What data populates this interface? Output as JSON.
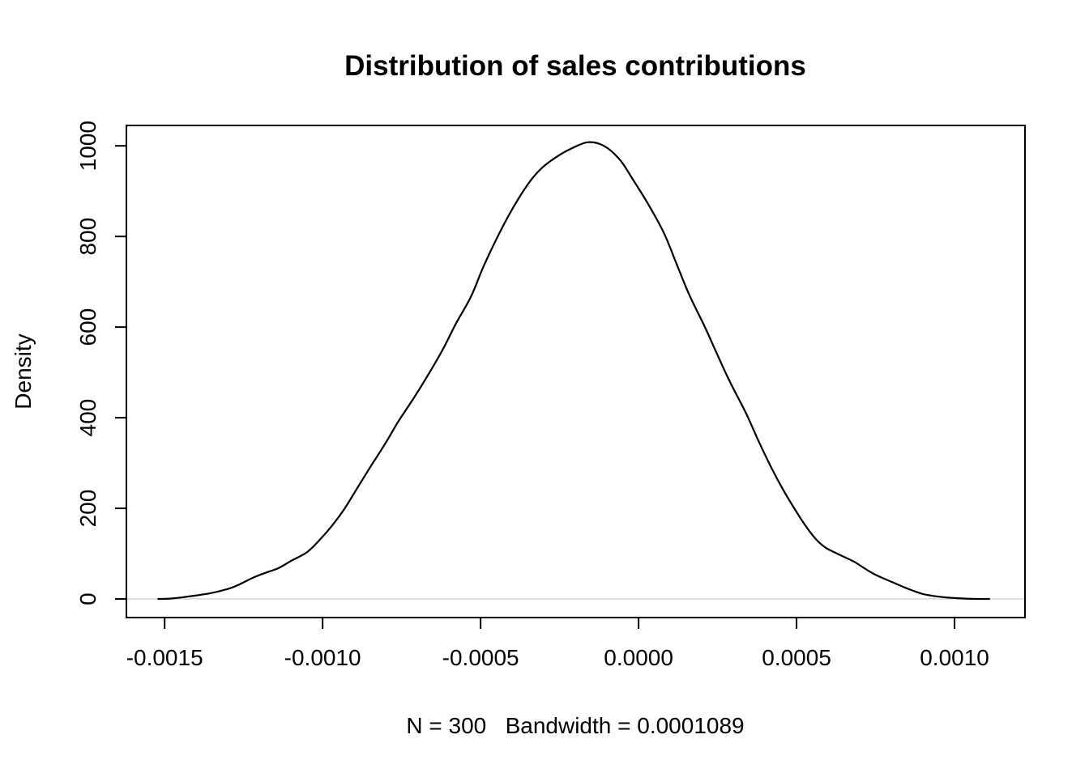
{
  "page": {
    "background_color": "#ffffff",
    "text_color": "#000000"
  },
  "chart_data": {
    "type": "line",
    "title": "Distribution of sales contributions",
    "xlabel": "N = 300   Bandwidth = 0.0001089",
    "ylabel": "Density",
    "n": 300,
    "bandwidth": 0.0001089,
    "grid": "off",
    "legend": "none",
    "line_color": "#000000",
    "zero_line_color": "#d6d6d6",
    "xlim": [
      -0.001621,
      0.001223
    ],
    "ylim": [
      -41,
      1045
    ],
    "x_ticks": {
      "values": [
        -0.0015,
        -0.001,
        -0.0005,
        0.0,
        0.0005,
        0.001
      ],
      "labels": [
        "-0.0015",
        "-0.0010",
        "-0.0005",
        "0.0000",
        "0.0005",
        "0.0010"
      ]
    },
    "y_ticks": {
      "values": [
        0,
        200,
        400,
        600,
        800,
        1000
      ],
      "labels": [
        "0",
        "200",
        "400",
        "600",
        "800",
        "1000"
      ]
    },
    "series": [
      {
        "name": "density",
        "points": [
          [
            -0.00152,
            0
          ],
          [
            -0.00148,
            1
          ],
          [
            -0.00144,
            4
          ],
          [
            -0.00136,
            12
          ],
          [
            -0.0013,
            22
          ],
          [
            -0.00127,
            30
          ],
          [
            -0.00122,
            47
          ],
          [
            -0.00118,
            58
          ],
          [
            -0.00114,
            68
          ],
          [
            -0.0011,
            84
          ],
          [
            -0.00105,
            103
          ],
          [
            -0.00101,
            130
          ],
          [
            -0.00097,
            162
          ],
          [
            -0.00093,
            200
          ],
          [
            -0.00089,
            245
          ],
          [
            -0.00085,
            290
          ],
          [
            -0.0008,
            345
          ],
          [
            -0.00076,
            392
          ],
          [
            -0.00071,
            445
          ],
          [
            -0.00067,
            490
          ],
          [
            -0.00062,
            550
          ],
          [
            -0.00058,
            605
          ],
          [
            -0.00053,
            668
          ],
          [
            -0.00049,
            735
          ],
          [
            -0.00044,
            808
          ],
          [
            -0.00039,
            872
          ],
          [
            -0.00034,
            925
          ],
          [
            -0.0003,
            955
          ],
          [
            -0.00025,
            980
          ],
          [
            -0.00021,
            995
          ],
          [
            -0.00016,
            1008
          ],
          [
            -0.00011,
            1000
          ],
          [
            -6e-05,
            970
          ],
          [
            -2e-05,
            928
          ],
          [
            3e-05,
            872
          ],
          [
            8e-05,
            808
          ],
          [
            0.00012,
            740
          ],
          [
            0.00016,
            672
          ],
          [
            0.00021,
            600
          ],
          [
            0.00025,
            538
          ],
          [
            0.00029,
            478
          ],
          [
            0.00034,
            410
          ],
          [
            0.00038,
            348
          ],
          [
            0.00042,
            290
          ],
          [
            0.00046,
            238
          ],
          [
            0.0005,
            192
          ],
          [
            0.00053,
            160
          ],
          [
            0.00056,
            133
          ],
          [
            0.00059,
            114
          ],
          [
            0.00062,
            103
          ],
          [
            0.00065,
            93
          ],
          [
            0.00068,
            83
          ],
          [
            0.00071,
            70
          ],
          [
            0.00074,
            57
          ],
          [
            0.00077,
            47
          ],
          [
            0.0008,
            38
          ],
          [
            0.00084,
            26
          ],
          [
            0.00087,
            18
          ],
          [
            0.0009,
            11
          ],
          [
            0.00094,
            6
          ],
          [
            0.00098,
            3
          ],
          [
            0.00103,
            1
          ],
          [
            0.00108,
            0
          ],
          [
            0.00111,
            0
          ]
        ]
      }
    ]
  }
}
